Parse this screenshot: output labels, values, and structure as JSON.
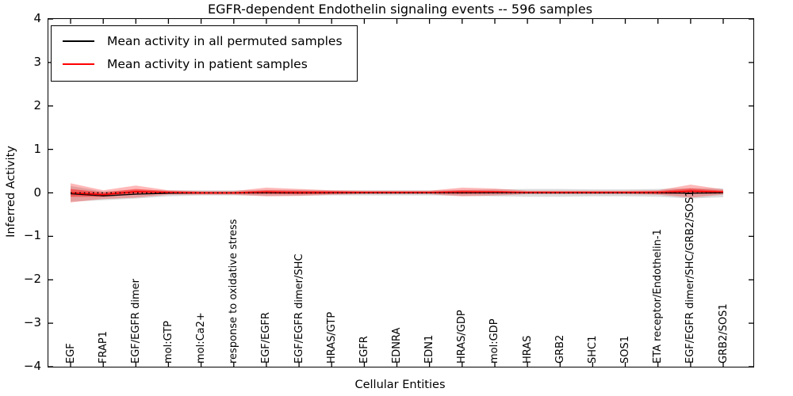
{
  "figure": {
    "title": "EGFR-dependent Endothelin signaling events -- 596 samples",
    "xlabel": "Cellular Entities",
    "ylabel": "Inferred Activity"
  },
  "legend": {
    "entries": [
      {
        "label": "Mean activity in all permuted samples",
        "color": "#000000"
      },
      {
        "label": "Mean activity in patient samples",
        "color": "#ff0000"
      }
    ]
  },
  "colors": {
    "axis": "#000000",
    "permuted_line": "#000000",
    "patient_line": "#ff0000",
    "permuted_band": "#999999",
    "patient_band": "#ff0000",
    "zero_line": "#000000"
  },
  "chart_data": {
    "type": "line",
    "title": "EGFR-dependent Endothelin signaling events -- 596 samples",
    "xlabel": "Cellular Entities",
    "ylabel": "Inferred Activity",
    "ylim": [
      -4,
      4
    ],
    "yticks": [
      4,
      3,
      2,
      1,
      0,
      -1,
      -2,
      -3,
      -4
    ],
    "ytick_labels": [
      "4",
      "3",
      "2",
      "1",
      "0",
      "−1",
      "−2",
      "−3",
      "−4"
    ],
    "grid": false,
    "legend_position": "upper left",
    "categories": [
      "EGF",
      "FRAP1",
      "EGF/EGFR dimer",
      "mol:GTP",
      "mol:Ca2+",
      "response to oxidative stress",
      "EGF/EGFR",
      "EGF/EGFR dimer/SHC",
      "HRAS/GTP",
      "EGFR",
      "EDNRA",
      "EDN1",
      "HRAS/GDP",
      "mol:GDP",
      "HRAS",
      "GRB2",
      "SHC1",
      "SOS1",
      "ETA receptor/Endothelin-1",
      "EGF/EGFR dimer/SHC/GRB2/SOS1",
      "GRB2/SOS1"
    ],
    "series": [
      {
        "name": "Mean activity in all permuted samples",
        "color": "#000000",
        "style": "solid",
        "values": [
          -0.02,
          -0.07,
          -0.03,
          -0.01,
          0.0,
          0.0,
          0.0,
          0.0,
          0.0,
          0.0,
          0.0,
          0.0,
          0.0,
          0.0,
          0.0,
          0.0,
          0.0,
          0.0,
          0.0,
          -0.01,
          0.0
        ]
      },
      {
        "name": "Mean activity in patient samples",
        "color": "#ff0000",
        "style": "solid",
        "values": [
          0.0,
          -0.04,
          0.03,
          0.01,
          0.0,
          0.0,
          0.02,
          0.01,
          0.01,
          0.01,
          0.01,
          0.01,
          0.02,
          0.02,
          0.01,
          0.01,
          0.01,
          0.01,
          0.01,
          0.04,
          0.02
        ]
      }
    ],
    "bands": [
      {
        "name": "permuted-std-band",
        "center_series": 0,
        "color": "#999999",
        "opacity": 0.35,
        "half_widths": [
          0.18,
          0.1,
          0.1,
          0.07,
          0.06,
          0.06,
          0.07,
          0.07,
          0.06,
          0.06,
          0.06,
          0.06,
          0.07,
          0.08,
          0.09,
          0.09,
          0.08,
          0.08,
          0.09,
          0.12,
          0.1
        ]
      },
      {
        "name": "patient-std-band",
        "center_series": 1,
        "color": "#ff0000",
        "opacity": 0.28,
        "half_widths": [
          0.22,
          0.1,
          0.14,
          0.05,
          0.04,
          0.04,
          0.1,
          0.08,
          0.05,
          0.04,
          0.04,
          0.04,
          0.1,
          0.08,
          0.04,
          0.04,
          0.04,
          0.04,
          0.05,
          0.15,
          0.06
        ]
      },
      {
        "name": "patient-inner-band",
        "center_series": 1,
        "color": "#ff0000",
        "opacity": 0.45,
        "half_widths": [
          0.09,
          0.05,
          0.06,
          0.03,
          0.02,
          0.02,
          0.04,
          0.04,
          0.03,
          0.02,
          0.02,
          0.02,
          0.04,
          0.03,
          0.02,
          0.02,
          0.02,
          0.02,
          0.03,
          0.06,
          0.03
        ]
      }
    ],
    "zero_line": {
      "y": 0,
      "style": "dotted",
      "color": "#000000"
    }
  }
}
